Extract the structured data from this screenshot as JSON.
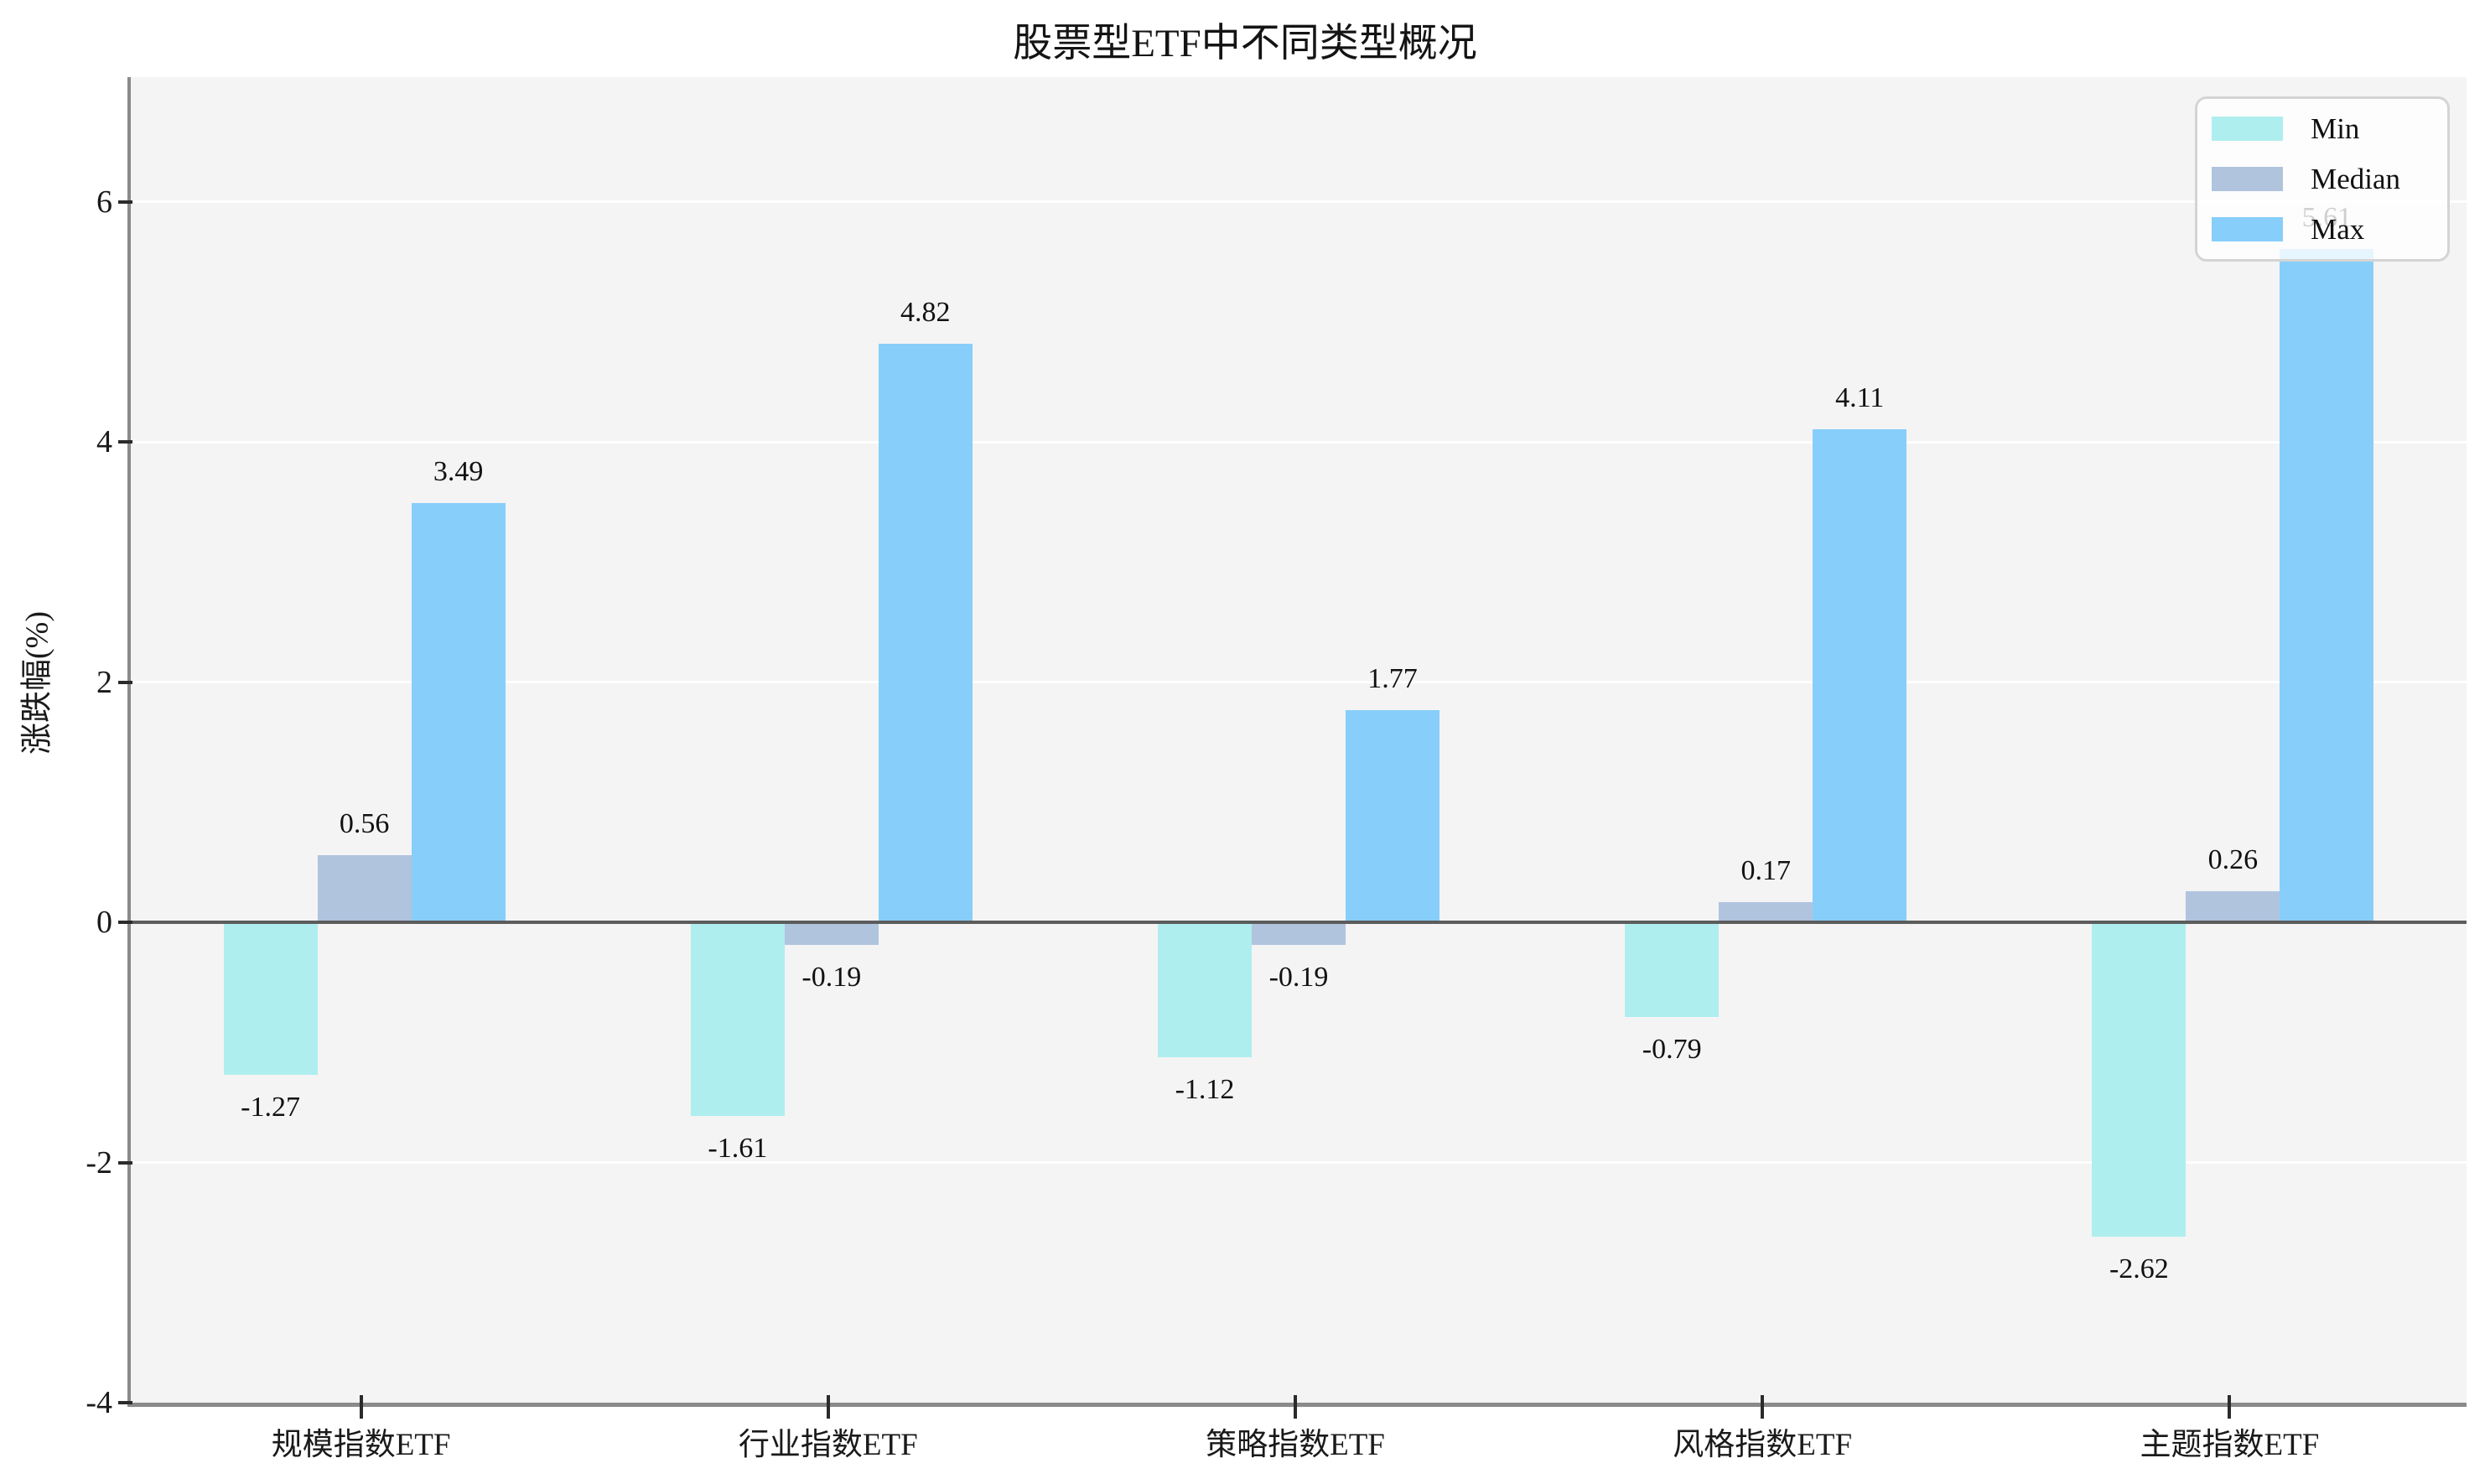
{
  "title": "股票型ETF中不同类型概况",
  "chart_data": {
    "type": "bar",
    "title": "股票型ETF中不同类型概况",
    "xlabel": "",
    "ylabel": "涨跌幅(%)",
    "categories": [
      "规模指数ETF",
      "行业指数ETF",
      "策略指数ETF",
      "风格指数ETF",
      "主题指数ETF"
    ],
    "series": [
      {
        "name": "Min",
        "color": "#AFEEEE",
        "values": [
          -1.27,
          -1.61,
          -1.12,
          -0.79,
          -2.62
        ]
      },
      {
        "name": "Median",
        "color": "#B0C4DE",
        "values": [
          0.56,
          -0.19,
          -0.19,
          0.17,
          0.26
        ]
      },
      {
        "name": "Max",
        "color": "#87CEFA",
        "values": [
          3.49,
          4.82,
          1.77,
          4.11,
          5.61
        ]
      }
    ],
    "yticks": [
      6,
      4,
      2,
      0,
      -2,
      -4
    ],
    "ylim": [
      -4,
      7.04
    ],
    "grid": true,
    "grid_color": "#ffffff",
    "plot_background": "#f4f4f5",
    "zero_line_color": "#5c5c5c",
    "legend_position": "upper right",
    "legend_entries": [
      "Min",
      "Median",
      "Max"
    ]
  }
}
